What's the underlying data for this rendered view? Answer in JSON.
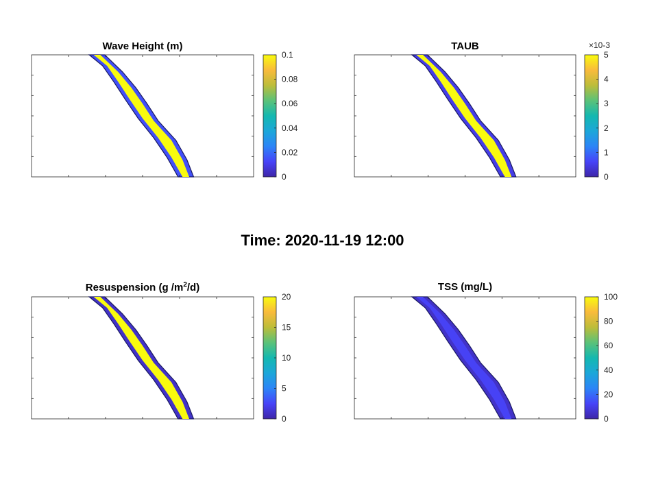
{
  "figure": {
    "main_title": "Time: 2020-11-19 12:00"
  },
  "chart_data": [
    {
      "type": "heatmap",
      "title": "Wave Height (m)",
      "colorbar": {
        "range": [
          0,
          0.1
        ],
        "ticks": [
          "0",
          "0.02",
          "0.04",
          "0.06",
          "0.08",
          "0.1"
        ],
        "exponent": ""
      },
      "dominant_value": 0.1,
      "edge_value": 0.015,
      "colormap": "parula"
    },
    {
      "type": "heatmap",
      "title": "TAUB",
      "colorbar": {
        "range": [
          0,
          5
        ],
        "ticks": [
          "0",
          "1",
          "2",
          "3",
          "4",
          "5"
        ],
        "exponent": "×10-3"
      },
      "dominant_value": 5,
      "edge_value": 0.5,
      "colormap": "parula"
    },
    {
      "type": "heatmap",
      "title_main": "Resuspension (g /m",
      "title_sup": "2",
      "title_tail": "/d)",
      "colorbar": {
        "range": [
          0,
          20
        ],
        "ticks": [
          "0",
          "5",
          "10",
          "15",
          "20"
        ],
        "exponent": ""
      },
      "dominant_value": 20,
      "edge_value": 1,
      "colormap": "parula"
    },
    {
      "type": "heatmap",
      "title": "TSS (mg/L)",
      "colorbar": {
        "range": [
          0,
          100
        ],
        "ticks": [
          "0",
          "20",
          "40",
          "60",
          "80",
          "100"
        ],
        "exponent": ""
      },
      "dominant_value": 12,
      "edge_value": 5,
      "colormap": "parula"
    }
  ]
}
